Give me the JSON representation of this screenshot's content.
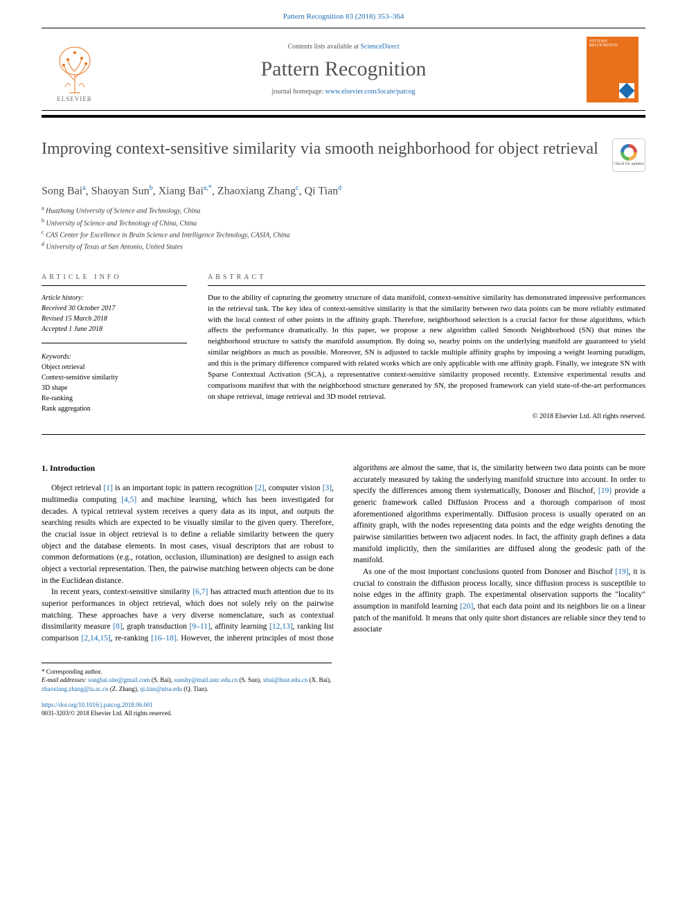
{
  "header": {
    "citation": "Pattern Recognition 83 (2018) 353–364",
    "contents_prefix": "Contents lists available at ",
    "contents_link": "ScienceDirect",
    "journal_name": "Pattern Recognition",
    "homepage_prefix": "journal homepage: ",
    "homepage_url": "www.elsevier.com/locate/patcog",
    "elsevier_label": "ELSEVIER",
    "cover_label": "PATTERN RECOGNITION"
  },
  "title": "Improving context-sensitive similarity via smooth neighborhood for object retrieval",
  "crossmark_label": "Check for updates",
  "authors_html": "Song Bai<sup>a</sup>, Shaoyan Sun<sup>b</sup>, Xiang Bai<sup>a,*</sup>, Zhaoxiang Zhang<sup>c</sup>, Qi Tian<sup>d</sup>",
  "affiliations": [
    {
      "sup": "a",
      "text": "Huazhong University of Science and Technology, China"
    },
    {
      "sup": "b",
      "text": "University of Science and Technology of China, China"
    },
    {
      "sup": "c",
      "text": "CAS Center for Excellence in Brain Science and Intelligence Technology, CASIA, China"
    },
    {
      "sup": "d",
      "text": "University of Texas at San Antonio, United States"
    }
  ],
  "info": {
    "header": "article info",
    "history_label": "Article history:",
    "received": "Received 30 October 2017",
    "revised": "Revised 15 March 2018",
    "accepted": "Accepted 1 June 2018",
    "keywords_label": "Keywords:",
    "keywords": [
      "Object retrieval",
      "Context-sensitive similarity",
      "3D shape",
      "Re-ranking",
      "Rank aggregation"
    ]
  },
  "abstract": {
    "header": "abstract",
    "text": "Due to the ability of capturing the geometry structure of data manifold, context-sensitive similarity has demonstrated impressive performances in the retrieval task. The key idea of context-sensitive similarity is that the similarity between two data points can be more reliably estimated with the local context of other points in the affinity graph. Therefore, neighborhood selection is a crucial factor for those algorithms, which affects the performance dramatically. In this paper, we propose a new algorithm called Smooth Neighborhood (SN) that mines the neighborhood structure to satisfy the manifold assumption. By doing so, nearby points on the underlying manifold are guaranteed to yield similar neighbors as much as possible. Moreover, SN is adjusted to tackle multiple affinity graphs by imposing a weight learning paradigm, and this is the primary difference compared with related works which are only applicable with one affinity graph. Finally, we integrate SN with Sparse Contextual Activation (SCA), a representative context-sensitive similarity proposed recently. Extensive experimental results and comparisons manifest that with the neighborhood structure generated by SN, the proposed framework can yield state-of-the-art performances on shape retrieval, image retrieval and 3D model retrieval.",
    "copyright": "© 2018 Elsevier Ltd. All rights reserved."
  },
  "body": {
    "heading": "1. Introduction",
    "p1_a": "Object retrieval ",
    "p1_r1": "[1]",
    "p1_b": " is an important topic in pattern recognition ",
    "p1_r2": "[2]",
    "p1_c": ", computer vision ",
    "p1_r3": "[3]",
    "p1_d": ", multimedia computing ",
    "p1_r4": "[4,5]",
    "p1_e": " and machine learning, which has been investigated for decades. A typical retrieval system receives a query data as its input, and outputs the searching results which are expected to be visually similar to the given query. Therefore, the crucial issue in object retrieval is to define a reliable similarity between the query object and the database elements. In most cases, visual descriptors that are robust to common deformations (e.g., rotation, occlusion, illumination) are designed to assign each object a vectorial representation. Then, the pairwise matching between objects can be done in the Euclidean distance.",
    "p2_a": "In recent years, context-sensitive similarity ",
    "p2_r1": "[6,7]",
    "p2_b": " has attracted much attention due to its superior performances in object retrieval, which does not solely rely on the pairwise matching. These ap",
    "p2_c": "proaches have a very diverse nomenclature, such as contextual dissimilarity measure ",
    "p2_r2": "[8]",
    "p2_d": ", graph transduction ",
    "p2_r3": "[9–11]",
    "p2_e": ", affinity learning ",
    "p2_r4": "[12,13]",
    "p2_f": ", ranking list comparison ",
    "p2_r5": "[2,14,15]",
    "p2_g": ", re-ranking ",
    "p2_r6": "[16–18]",
    "p2_h": ". However, the inherent principles of most those algorithms are almost the same, that is, the similarity between two data points can be more accurately measured by taking the underlying manifold structure into account. In order to specify the differences among them systematically, Donoser and Bischof, ",
    "p2_r7": "[19]",
    "p2_i": " provide a generic framework called Diffusion Process and a thorough comparison of most aforementioned algorithms experimentally. Diffusion process is usually operated on an affinity graph, with the nodes representing data points and the edge weights denoting the pairwise similarities between two adjacent nodes. In fact, the affinity graph defines a data manifold implicitly, then the similarities are diffused along the geodesic path of the manifold.",
    "p3_a": "As one of the most important conclusions quoted from Donoser and Bischof ",
    "p3_r1": "[19]",
    "p3_b": ", it is crucial to constrain the diffusion process locally, since diffusion process is susceptible to noise edges in the affinity graph. The experimental observation supports the \"locality\" assumption in manifold learning ",
    "p3_r2": "[20]",
    "p3_c": ", that each data point and its neighbors lie on a linear patch of the manifold. It means that only quite short distances are reliable since they tend to associate"
  },
  "footnotes": {
    "corr": "* Corresponding author.",
    "emails_label": "E-mail addresses:",
    "emails": [
      {
        "addr": "songbai.site@gmail.com",
        "who": "(S. Bai)"
      },
      {
        "addr": "sunshy@mail.ustc.edu.cn",
        "who": "(S. Sun)"
      },
      {
        "addr": "xbai@hust.edu.cn",
        "who": "(X. Bai)"
      },
      {
        "addr": "zhaoxiang.zhang@ia.ac.cn",
        "who": "(Z. Zhang)"
      },
      {
        "addr": "qi.tian@utsa.edu",
        "who": "(Q. Tian)."
      }
    ],
    "doi": "https://doi.org/10.1016/j.patcog.2018.06.001",
    "issn_line": "0031-3203/© 2018 Elsevier Ltd. All rights reserved."
  },
  "colors": {
    "link": "#1a6baf",
    "elsevier_orange": "#e9711c",
    "text_gray": "#4a4a4a"
  }
}
